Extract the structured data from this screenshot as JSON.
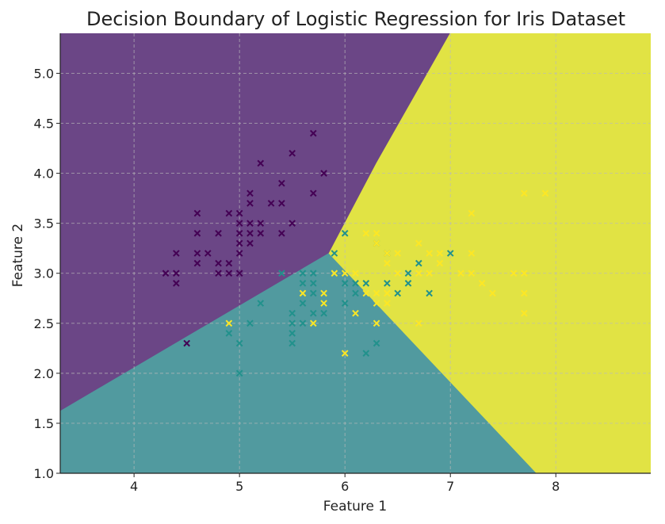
{
  "chart_data": {
    "type": "scatter",
    "title": "Decision Boundary of Logistic Regression for Iris Dataset",
    "xlabel": "Feature 1",
    "ylabel": "Feature 2",
    "xlim": [
      3.3,
      8.9
    ],
    "ylim": [
      1.0,
      5.4
    ],
    "xticks": [
      "4",
      "5",
      "6",
      "7",
      "8"
    ],
    "yticks": [
      "1.0",
      "1.5",
      "2.0",
      "2.5",
      "3.0",
      "3.5",
      "4.0",
      "4.5",
      "5.0"
    ],
    "grid": true,
    "marker": "x",
    "region_colors": {
      "class_0": "#6b4686",
      "class_1": "#519a9f",
      "class_2": "#e1e344"
    },
    "regions": {
      "class_0": [
        [
          3.3,
          1.62
        ],
        [
          5.85,
          3.2
        ],
        [
          6.3,
          4.1
        ],
        [
          7.0,
          5.4
        ],
        [
          3.3,
          5.4
        ]
      ],
      "class_1": [
        [
          3.3,
          1.0
        ],
        [
          7.82,
          1.0
        ],
        [
          5.85,
          3.2
        ],
        [
          3.3,
          1.62
        ]
      ],
      "class_2": [
        [
          7.82,
          1.0
        ],
        [
          8.9,
          1.0
        ],
        [
          8.9,
          5.4
        ],
        [
          7.0,
          5.4
        ],
        [
          6.3,
          4.1
        ],
        [
          5.85,
          3.2
        ]
      ]
    },
    "series": [
      {
        "color": "#440154",
        "points": [
          [
            4.3,
            3.0
          ],
          [
            4.4,
            2.9
          ],
          [
            4.4,
            3.0
          ],
          [
            4.4,
            3.2
          ],
          [
            4.5,
            2.3
          ],
          [
            4.6,
            3.1
          ],
          [
            4.6,
            3.2
          ],
          [
            4.6,
            3.4
          ],
          [
            4.6,
            3.6
          ],
          [
            4.7,
            3.2
          ],
          [
            4.8,
            3.0
          ],
          [
            4.8,
            3.1
          ],
          [
            4.8,
            3.4
          ],
          [
            4.9,
            3.0
          ],
          [
            4.9,
            3.1
          ],
          [
            4.9,
            3.6
          ],
          [
            5.0,
            3.0
          ],
          [
            5.0,
            3.2
          ],
          [
            5.0,
            3.3
          ],
          [
            5.0,
            3.4
          ],
          [
            5.0,
            3.5
          ],
          [
            5.0,
            3.6
          ],
          [
            5.1,
            3.3
          ],
          [
            5.1,
            3.4
          ],
          [
            5.1,
            3.5
          ],
          [
            5.1,
            3.7
          ],
          [
            5.1,
            3.8
          ],
          [
            5.2,
            3.4
          ],
          [
            5.2,
            3.5
          ],
          [
            5.2,
            4.1
          ],
          [
            5.3,
            3.7
          ],
          [
            5.4,
            3.4
          ],
          [
            5.4,
            3.7
          ],
          [
            5.4,
            3.9
          ],
          [
            5.5,
            3.5
          ],
          [
            5.5,
            4.2
          ],
          [
            5.7,
            3.8
          ],
          [
            5.7,
            4.4
          ],
          [
            5.8,
            4.0
          ]
        ]
      },
      {
        "color": "#21918c",
        "points": [
          [
            4.9,
            2.4
          ],
          [
            5.0,
            2.0
          ],
          [
            5.0,
            2.3
          ],
          [
            5.1,
            2.5
          ],
          [
            5.2,
            2.7
          ],
          [
            5.4,
            3.0
          ],
          [
            5.5,
            2.3
          ],
          [
            5.5,
            2.4
          ],
          [
            5.5,
            2.5
          ],
          [
            5.5,
            2.6
          ],
          [
            5.6,
            2.5
          ],
          [
            5.6,
            2.7
          ],
          [
            5.6,
            2.9
          ],
          [
            5.6,
            3.0
          ],
          [
            5.7,
            2.6
          ],
          [
            5.7,
            2.8
          ],
          [
            5.7,
            2.9
          ],
          [
            5.7,
            3.0
          ],
          [
            5.8,
            2.6
          ],
          [
            5.8,
            2.7
          ],
          [
            5.9,
            3.2
          ],
          [
            6.0,
            2.7
          ],
          [
            6.0,
            2.9
          ],
          [
            6.0,
            3.4
          ],
          [
            6.1,
            2.8
          ],
          [
            6.1,
            2.9
          ],
          [
            6.2,
            2.2
          ],
          [
            6.2,
            2.9
          ],
          [
            6.3,
            2.3
          ],
          [
            6.3,
            3.3
          ],
          [
            6.4,
            2.9
          ],
          [
            6.4,
            3.2
          ],
          [
            6.5,
            2.8
          ],
          [
            6.6,
            2.9
          ],
          [
            6.6,
            3.0
          ],
          [
            6.7,
            3.1
          ],
          [
            6.8,
            2.8
          ],
          [
            7.0,
            3.2
          ]
        ]
      },
      {
        "color": "#fde725",
        "points": [
          [
            4.9,
            2.5
          ],
          [
            5.6,
            2.8
          ],
          [
            5.7,
            2.5
          ],
          [
            5.8,
            2.7
          ],
          [
            5.8,
            2.8
          ],
          [
            5.9,
            3.0
          ],
          [
            6.0,
            2.2
          ],
          [
            6.0,
            3.0
          ],
          [
            6.1,
            2.6
          ],
          [
            6.1,
            3.0
          ],
          [
            6.2,
            2.8
          ],
          [
            6.2,
            3.4
          ],
          [
            6.3,
            2.5
          ],
          [
            6.3,
            2.7
          ],
          [
            6.3,
            2.8
          ],
          [
            6.3,
            3.3
          ],
          [
            6.3,
            3.4
          ],
          [
            6.4,
            2.7
          ],
          [
            6.4,
            2.8
          ],
          [
            6.4,
            3.1
          ],
          [
            6.4,
            3.2
          ],
          [
            6.5,
            3.0
          ],
          [
            6.5,
            3.2
          ],
          [
            6.7,
            2.5
          ],
          [
            6.7,
            3.0
          ],
          [
            6.7,
            3.3
          ],
          [
            6.8,
            3.0
          ],
          [
            6.8,
            3.2
          ],
          [
            6.9,
            3.1
          ],
          [
            6.9,
            3.2
          ],
          [
            7.1,
            3.0
          ],
          [
            7.2,
            3.0
          ],
          [
            7.2,
            3.2
          ],
          [
            7.2,
            3.6
          ],
          [
            7.3,
            2.9
          ],
          [
            7.4,
            2.8
          ],
          [
            7.6,
            3.0
          ],
          [
            7.7,
            2.6
          ],
          [
            7.7,
            2.8
          ],
          [
            7.7,
            3.0
          ],
          [
            7.7,
            3.8
          ],
          [
            7.9,
            3.8
          ]
        ]
      }
    ]
  }
}
